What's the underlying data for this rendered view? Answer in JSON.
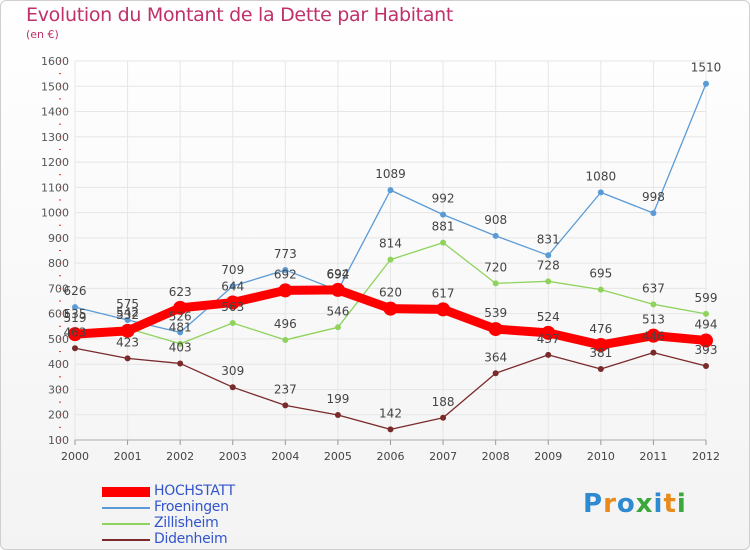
{
  "header": {
    "title": "Evolution du Montant de la Dette par Habitant",
    "subtitle": "(en €)"
  },
  "logo": {
    "text": "Proxiti",
    "letter_colors": [
      "#2e8bd1",
      "#e88a1c",
      "#2e8bd1",
      "#3aa83a",
      "#2e8bd1",
      "#e88a1c",
      "#3aa83a"
    ]
  },
  "chart_data": {
    "type": "line",
    "title": "Evolution du Montant de la Dette par Habitant",
    "subtitle": "(en €)",
    "xlabel": "",
    "ylabel": "",
    "ylim": [
      100,
      1600
    ],
    "yticks": [
      100,
      200,
      300,
      400,
      500,
      600,
      700,
      800,
      900,
      1000,
      1100,
      1200,
      1300,
      1400,
      1500,
      1600
    ],
    "grid": true,
    "legend_position": "bottom-left",
    "x": [
      "2000",
      "2001",
      "2002",
      "2003",
      "2004",
      "2005",
      "2006",
      "2007",
      "2008",
      "2009",
      "2010",
      "2011",
      "2012"
    ],
    "series": [
      {
        "name": "HOCHSTATT",
        "color": "#ff0000",
        "values": [
          519,
          532,
          623,
          644,
          692,
          694,
          620,
          617,
          539,
          524,
          476,
          513,
          494
        ],
        "labels": [
          "519",
          "532",
          "623",
          "644",
          "692",
          "694",
          "620",
          "617",
          "539",
          "524",
          "476",
          "513",
          "494"
        ]
      },
      {
        "name": "Froeningen",
        "color": "#5b9bd5",
        "values": [
          626,
          575,
          526,
          709,
          773,
          692,
          1089,
          992,
          908,
          831,
          1080,
          998,
          1510
        ],
        "labels": [
          "626",
          "575",
          "526",
          "709",
          "773",
          "692",
          "1089",
          "992",
          "908",
          "831",
          "1080",
          "998",
          "1510"
        ]
      },
      {
        "name": "Zillisheim",
        "color": "#8fd35c",
        "values": [
          535,
          542,
          481,
          563,
          496,
          546,
          814,
          881,
          720,
          728,
          695,
          637,
          599
        ],
        "labels": [
          "535",
          "542",
          "481",
          "563",
          "496",
          "546",
          "814",
          "881",
          "720",
          "728",
          "695",
          "637",
          "599"
        ]
      },
      {
        "name": "Didenheim",
        "color": "#7a2a2a",
        "values": [
          463,
          423,
          403,
          309,
          237,
          199,
          142,
          188,
          364,
          437,
          381,
          446,
          393
        ],
        "labels": [
          "463",
          "423",
          "403",
          "309",
          "237",
          "199",
          "142",
          "188",
          "364",
          "437",
          "381",
          "446",
          "393"
        ]
      }
    ]
  }
}
